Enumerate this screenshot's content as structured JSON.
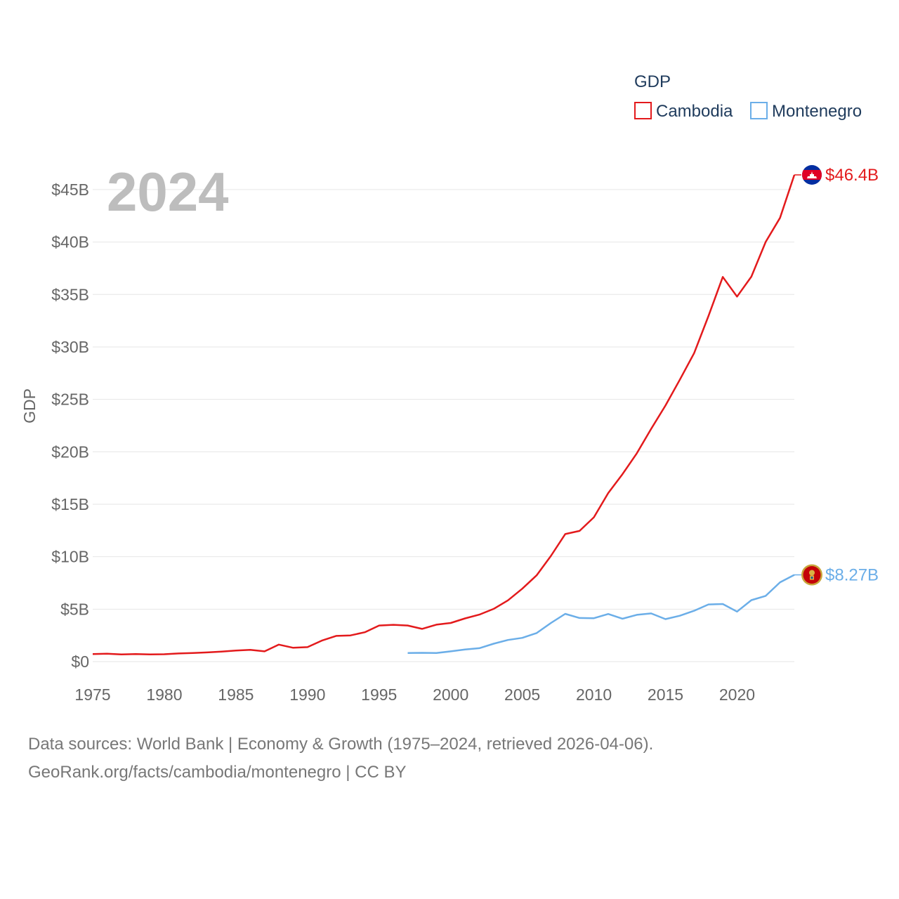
{
  "chart_data": {
    "type": "line",
    "year_label": "2024",
    "ylabel": "GDP",
    "legend_title": "GDP",
    "legend_position": "top-right",
    "x_range": [
      1975,
      2024
    ],
    "ylim": [
      0,
      46.4
    ],
    "x_ticks": [
      1975,
      1980,
      1985,
      1990,
      1995,
      2000,
      2005,
      2010,
      2015,
      2020
    ],
    "x_tick_labels": [
      "1975",
      "1980",
      "1985",
      "1990",
      "1995",
      "2000",
      "2005",
      "2010",
      "2015",
      "2020"
    ],
    "y_ticks": [
      0,
      5,
      10,
      15,
      20,
      25,
      30,
      35,
      40,
      45
    ],
    "y_tick_labels": [
      "$0",
      "$5B",
      "$10B",
      "$15B",
      "$20B",
      "$25B",
      "$30B",
      "$35B",
      "$40B",
      "$45B"
    ],
    "series": [
      {
        "name": "Cambodia",
        "color": "#e31a1c",
        "end_label": "$46.4B",
        "x": [
          1975,
          1976,
          1977,
          1978,
          1979,
          1980,
          1981,
          1982,
          1983,
          1984,
          1985,
          1986,
          1987,
          1988,
          1989,
          1990,
          1991,
          1992,
          1993,
          1994,
          1995,
          1996,
          1997,
          1998,
          1999,
          2000,
          2001,
          2002,
          2003,
          2004,
          2005,
          2006,
          2007,
          2008,
          2009,
          2010,
          2011,
          2012,
          2013,
          2014,
          2015,
          2016,
          2017,
          2018,
          2019,
          2020,
          2021,
          2022,
          2023,
          2024
        ],
        "values": [
          0.72,
          0.75,
          0.68,
          0.72,
          0.69,
          0.7,
          0.78,
          0.82,
          0.88,
          0.96,
          1.05,
          1.12,
          0.98,
          1.62,
          1.32,
          1.38,
          2.0,
          2.45,
          2.5,
          2.8,
          3.44,
          3.51,
          3.44,
          3.12,
          3.52,
          3.68,
          4.12,
          4.48,
          5.03,
          5.84,
          6.95,
          8.22,
          10.08,
          12.16,
          12.46,
          13.76,
          16.07,
          17.87,
          19.86,
          22.19,
          24.41,
          26.87,
          29.41,
          32.94,
          36.67,
          34.8,
          36.7,
          40.01,
          42.3,
          46.4
        ]
      },
      {
        "name": "Montenegro",
        "color": "#6baee8",
        "end_label": "$8.27B",
        "x": [
          1997,
          1998,
          1999,
          2000,
          2001,
          2002,
          2003,
          2004,
          2005,
          2006,
          2007,
          2008,
          2009,
          2010,
          2011,
          2012,
          2013,
          2014,
          2015,
          2016,
          2017,
          2018,
          2019,
          2020,
          2021,
          2022,
          2023,
          2024
        ],
        "values": [
          0.82,
          0.84,
          0.82,
          0.98,
          1.16,
          1.28,
          1.71,
          2.06,
          2.26,
          2.72,
          3.68,
          4.55,
          4.16,
          4.14,
          4.54,
          4.09,
          4.46,
          4.59,
          4.05,
          4.37,
          4.85,
          5.45,
          5.49,
          4.77,
          5.86,
          6.27,
          7.56,
          8.27
        ]
      }
    ]
  },
  "source": {
    "line1": "Data sources: World Bank | Economy & Growth (1975–2024, retrieved 2026-04-06).",
    "line2": "GeoRank.org/facts/cambodia/montenegro | CC BY"
  }
}
